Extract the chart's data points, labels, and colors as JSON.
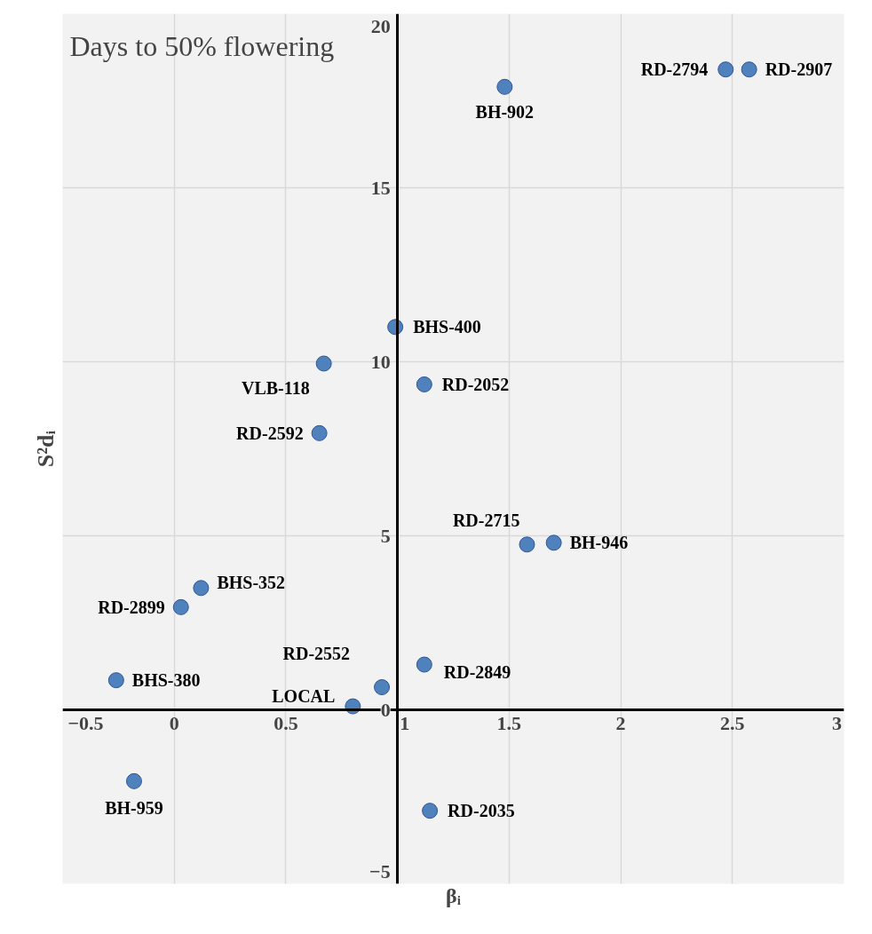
{
  "chart_data": {
    "type": "scatter",
    "title": "Days to 50% flowering",
    "xlabel": "βᵢ",
    "ylabel": "S²dᵢ",
    "x": [
      2.47,
      2.575,
      1.48,
      0.99,
      0.67,
      1.12,
      0.65,
      1.58,
      1.7,
      0.12,
      0.03,
      1.12,
      0.93,
      -0.26,
      0.8,
      -0.18,
      1.145
    ],
    "series": [
      {
        "color": "#4f81bd",
        "values": [
          18.4,
          18.4,
          17.9,
          11.0,
          9.95,
          9.35,
          7.95,
          4.75,
          4.8,
          3.5,
          2.95,
          1.3,
          0.65,
          0.85,
          0.1,
          -2.05,
          -2.9
        ]
      }
    ],
    "annotations": [
      {
        "text": "RD-2794",
        "x": 2.47,
        "y": 18.4
      },
      {
        "text": "RD-2907",
        "x": 2.575,
        "y": 18.4
      },
      {
        "text": "BH-902",
        "x": 1.48,
        "y": 17.9
      },
      {
        "text": "BHS-400",
        "x": 0.99,
        "y": 11.0
      },
      {
        "text": "VLB-118",
        "x": 0.67,
        "y": 9.95
      },
      {
        "text": "RD-2052",
        "x": 1.12,
        "y": 9.35
      },
      {
        "text": "RD-2592",
        "x": 0.65,
        "y": 7.95
      },
      {
        "text": "RD-2715",
        "x": 1.58,
        "y": 4.75
      },
      {
        "text": "BH-946",
        "x": 1.7,
        "y": 4.8
      },
      {
        "text": "BHS-352",
        "x": 0.12,
        "y": 3.5
      },
      {
        "text": "RD-2899",
        "x": 0.03,
        "y": 2.95
      },
      {
        "text": "RD-2849",
        "x": 1.12,
        "y": 1.3
      },
      {
        "text": "RD-2552",
        "x": 0.93,
        "y": 0.65
      },
      {
        "text": "BHS-380",
        "x": -0.26,
        "y": 0.85
      },
      {
        "text": "LOCAL",
        "x": 0.8,
        "y": 0.1
      },
      {
        "text": "BH-959",
        "x": -0.18,
        "y": -2.05
      },
      {
        "text": "RD-2035",
        "x": 1.145,
        "y": -2.9
      }
    ],
    "xlim": [
      -0.5,
      3
    ],
    "xticks": [
      -0.5,
      0,
      0.5,
      1,
      1.5,
      2,
      2.5,
      3
    ],
    "ylim": [
      -5,
      20
    ],
    "yticks": [
      -5,
      0,
      5,
      10,
      15,
      20
    ],
    "grid": true,
    "marker": "circle"
  }
}
